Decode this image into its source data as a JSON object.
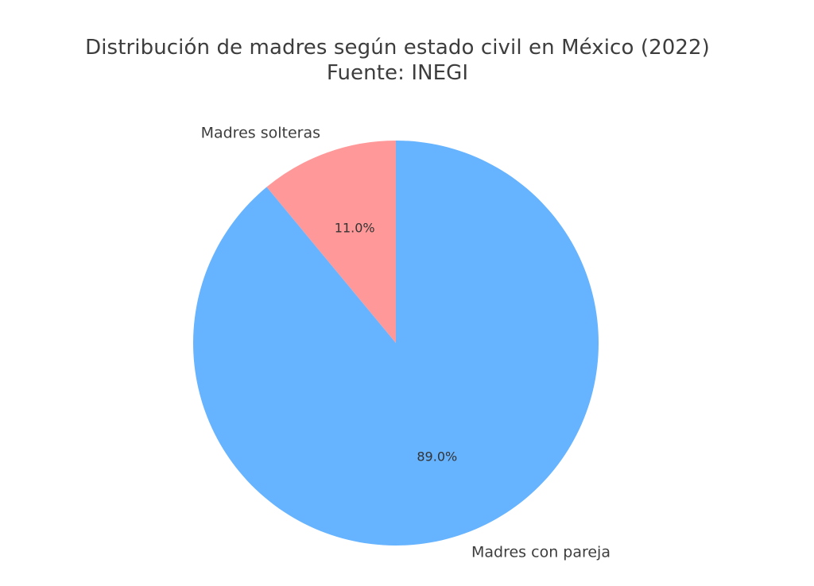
{
  "chart_data": {
    "type": "pie",
    "title": "Distribución de madres según estado civil en México (2022)",
    "subtitle": "Fuente: INEGI",
    "slices": [
      {
        "label": "Madres solteras",
        "value": 11.0,
        "pct_label": "11.0%",
        "color": "#ff9999"
      },
      {
        "label": "Madres con pareja",
        "value": 89.0,
        "pct_label": "89.0%",
        "color": "#66b3ff"
      }
    ],
    "start_angle": 90,
    "direction": "counterclockwise"
  }
}
